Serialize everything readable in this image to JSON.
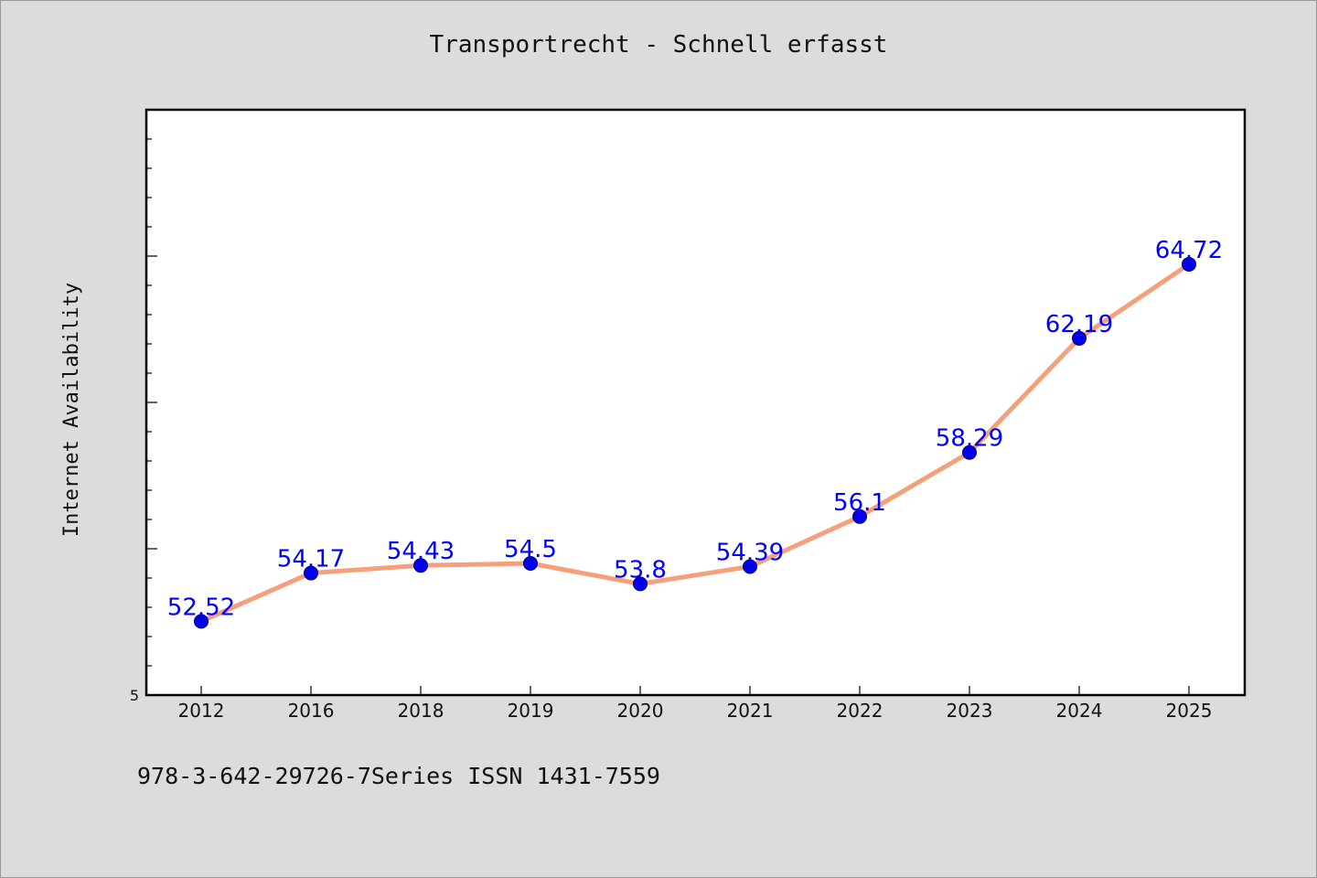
{
  "title": "Transportrecht - Schnell erfasst",
  "footnote": "978-3-642-29726-7Series ISSN 1431-7559",
  "chart_data": {
    "type": "line",
    "title": "Transportrecht - Schnell erfasst",
    "xlabel": "",
    "ylabel": "Internet Availability",
    "categories": [
      "2012",
      "2016",
      "2018",
      "2019",
      "2020",
      "2021",
      "2022",
      "2023",
      "2024",
      "2025"
    ],
    "series": [
      {
        "values": [
          52.52,
          54.17,
          54.43,
          54.5,
          53.8,
          54.39,
          56.1,
          58.29,
          62.19,
          64.72
        ],
        "labels": [
          "52.52",
          "54.17",
          "54.43",
          "54.5",
          "53.8",
          "54.39",
          "56.1",
          "58.29",
          "62.19",
          "64.72"
        ]
      }
    ],
    "y_tick_labels": [
      "5"
    ],
    "ylim": [
      50.0,
      70.0
    ],
    "grid": false,
    "legend": "none",
    "colors": {
      "line": "#f4a07a",
      "marker": "#0000ee",
      "data_label": "#0000ff",
      "plot_background": "#ffffff",
      "figure_background": "#dcdcdc"
    }
  }
}
